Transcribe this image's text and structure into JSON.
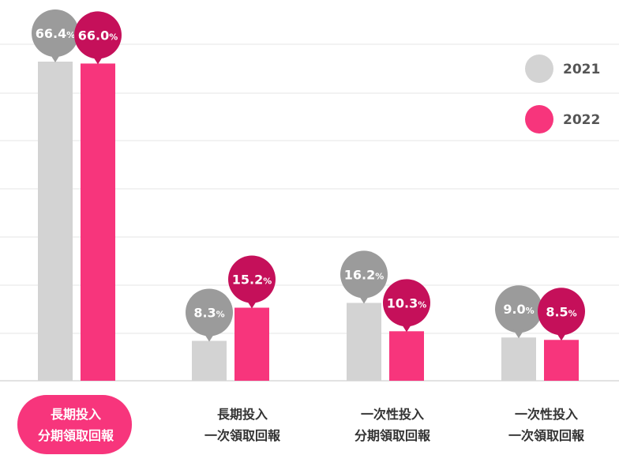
{
  "chart_data": {
    "type": "bar",
    "categories": [
      [
        "長期投入",
        "分期領取回報"
      ],
      [
        "長期投入",
        "一次領取回報"
      ],
      [
        "一次性投入",
        "分期領取回報"
      ],
      [
        "一次性投入",
        "一次領取回報"
      ]
    ],
    "series": [
      {
        "name": "2021",
        "values": [
          66.4,
          8.3,
          16.2,
          9.0
        ],
        "color": "#d3d3d3",
        "bubble_color": "#9b9b9b"
      },
      {
        "name": "2022",
        "values": [
          66.0,
          15.2,
          10.3,
          8.5
        ],
        "color": "#f7357c",
        "bubble_color": "#c5105a"
      }
    ],
    "value_unit": "%",
    "ylim": [
      0,
      70
    ],
    "grid": true,
    "legend_position": "top-right",
    "highlighted_category_index": 0,
    "highlight_color": "#f7357c"
  }
}
